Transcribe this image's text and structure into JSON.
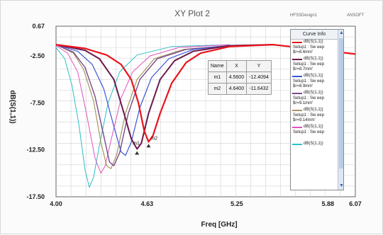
{
  "header": {
    "title": "XY Plot 2",
    "corner_text": "HFSSDesign1",
    "corner_small": "ANSOFT"
  },
  "chart_data": {
    "type": "line",
    "title": "XY Plot 2",
    "xlabel": "Freq [GHz]",
    "ylabel": "dB(S(1,1))",
    "xlim": [
      4.0,
      6.07
    ],
    "ylim": [
      -17.5,
      0.67
    ],
    "x_ticks": [
      "4.00",
      "4.63",
      "5.25",
      "5.88",
      "6.07"
    ],
    "y_ticks": [
      "0.67",
      "-2.50",
      "-7.50",
      "-12.50",
      "-17.50"
    ],
    "grid": true,
    "legend_position": "right",
    "series": [
      {
        "name": "dB(S(1,1))",
        "setup": "Setup1 : Sw eep",
        "param": "$r=8.6mm'",
        "color": "#e8141c",
        "width": 2.2,
        "points": [
          [
            4.0,
            -1.3
          ],
          [
            4.2,
            -1.7
          ],
          [
            4.35,
            -2.4
          ],
          [
            4.45,
            -3.4
          ],
          [
            4.52,
            -5.0
          ],
          [
            4.57,
            -7.5
          ],
          [
            4.61,
            -10.5
          ],
          [
            4.64,
            -11.64
          ],
          [
            4.67,
            -11.0
          ],
          [
            4.72,
            -8.6
          ],
          [
            4.8,
            -5.4
          ],
          [
            4.9,
            -3.2
          ],
          [
            5.0,
            -2.2
          ],
          [
            5.2,
            -1.5
          ],
          [
            5.5,
            -1.3
          ],
          [
            5.8,
            -1.8
          ],
          [
            6.07,
            -2.3
          ]
        ]
      },
      {
        "name": "dB(S(1,1))",
        "setup": "Setup1 : Sw eep",
        "param": "$r=8.7mm'",
        "color": "#6b1a4c",
        "width": 2.0,
        "points": [
          [
            4.0,
            -1.3
          ],
          [
            4.2,
            -1.9
          ],
          [
            4.3,
            -2.8
          ],
          [
            4.4,
            -5.0
          ],
          [
            4.47,
            -8.6
          ],
          [
            4.52,
            -11.3
          ],
          [
            4.56,
            -12.41
          ],
          [
            4.59,
            -11.8
          ],
          [
            4.64,
            -8.6
          ],
          [
            4.72,
            -5.0
          ],
          [
            4.82,
            -3.0
          ],
          [
            4.95,
            -2.0
          ],
          [
            5.2,
            -1.4
          ],
          [
            5.5,
            -1.3
          ]
        ]
      },
      {
        "name": "dB(S(1,1))",
        "setup": "Setup1 : Sw eep",
        "param": "$r=8.9mm'",
        "color": "#3a55d6",
        "width": 1.2,
        "points": [
          [
            4.0,
            -1.3
          ],
          [
            4.15,
            -2.0
          ],
          [
            4.25,
            -3.4
          ],
          [
            4.33,
            -6.0
          ],
          [
            4.4,
            -10.0
          ],
          [
            4.45,
            -12.7
          ],
          [
            4.48,
            -13.1
          ],
          [
            4.52,
            -11.7
          ],
          [
            4.58,
            -8.0
          ],
          [
            4.66,
            -4.8
          ],
          [
            4.78,
            -2.8
          ],
          [
            4.95,
            -1.8
          ],
          [
            5.2,
            -1.4
          ]
        ]
      },
      {
        "name": "dB(S(1,1))",
        "setup": "Setup1 : Sw eep",
        "param": "$r=9.1mm'",
        "color": "#7a4a8a",
        "width": 1.4,
        "points": [
          [
            4.0,
            -1.3
          ],
          [
            4.12,
            -2.1
          ],
          [
            4.2,
            -3.7
          ],
          [
            4.27,
            -6.8
          ],
          [
            4.33,
            -11.0
          ],
          [
            4.37,
            -13.8
          ],
          [
            4.4,
            -14.2
          ],
          [
            4.44,
            -12.8
          ],
          [
            4.5,
            -8.6
          ],
          [
            4.58,
            -5.0
          ],
          [
            4.7,
            -2.8
          ],
          [
            4.9,
            -1.8
          ],
          [
            5.2,
            -1.4
          ]
        ]
      },
      {
        "name": "dB(S(1,1))",
        "setup": "Setup1 : Sw eep",
        "param": "$r=9.14mm'",
        "color": "#a89562",
        "width": 1.2,
        "points": [
          [
            4.0,
            -1.3
          ],
          [
            4.12,
            -2.2
          ],
          [
            4.19,
            -3.9
          ],
          [
            4.26,
            -7.3
          ],
          [
            4.31,
            -11.7
          ],
          [
            4.35,
            -14.2
          ],
          [
            4.38,
            -14.5
          ],
          [
            4.42,
            -13.0
          ],
          [
            4.48,
            -8.6
          ],
          [
            4.56,
            -5.0
          ],
          [
            4.68,
            -2.8
          ],
          [
            4.88,
            -1.8
          ],
          [
            5.2,
            -1.4
          ]
        ]
      },
      {
        "name": "dB(S(1,1))",
        "setup": "Setup1 : Sw eep",
        "param": "",
        "color": "#e054be",
        "width": 1.0,
        "points": [
          [
            4.0,
            -1.4
          ],
          [
            4.08,
            -2.2
          ],
          [
            4.15,
            -4.2
          ],
          [
            4.21,
            -8.6
          ],
          [
            4.27,
            -13.4
          ],
          [
            4.31,
            -15.0
          ],
          [
            4.34,
            -14.2
          ],
          [
            4.38,
            -11.5
          ],
          [
            4.45,
            -7.0
          ],
          [
            4.53,
            -4.2
          ],
          [
            4.65,
            -2.5
          ],
          [
            4.85,
            -1.6
          ],
          [
            5.2,
            -1.3
          ]
        ]
      },
      {
        "name": "dB(S(1,1))",
        "setup": "",
        "param": "",
        "color": "#2cc0c8",
        "width": 1.0,
        "points": [
          [
            4.0,
            -1.6
          ],
          [
            4.06,
            -2.8
          ],
          [
            4.11,
            -5.6
          ],
          [
            4.16,
            -10.0
          ],
          [
            4.2,
            -14.6
          ],
          [
            4.23,
            -16.5
          ],
          [
            4.26,
            -15.4
          ],
          [
            4.3,
            -12.0
          ],
          [
            4.36,
            -7.5
          ],
          [
            4.44,
            -4.2
          ],
          [
            4.56,
            -2.4
          ],
          [
            4.8,
            -1.5
          ],
          [
            5.2,
            -1.3
          ]
        ]
      }
    ],
    "markers": [
      {
        "name": "m1",
        "x": "4.5600",
        "y": "-12.4094",
        "xv": 4.56,
        "yv": -12.41
      },
      {
        "name": "m2",
        "x": "4.6400",
        "y": "-11.6432",
        "xv": 4.64,
        "yv": -11.64
      }
    ]
  },
  "marker_table": {
    "headers": [
      "Name",
      "X",
      "Y"
    ]
  },
  "legend": {
    "title": "Curve Info",
    "scroll_up": "▲",
    "scroll_down": "▼"
  }
}
